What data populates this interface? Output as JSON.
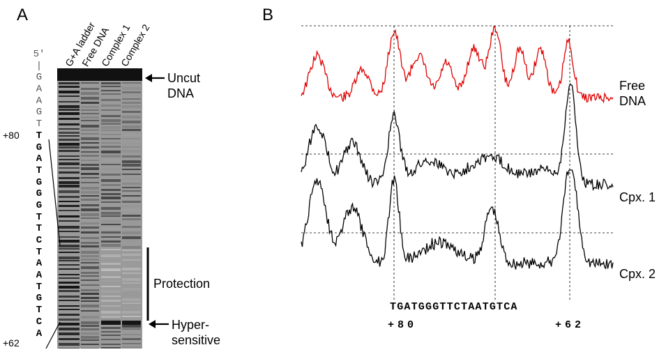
{
  "panel_a": {
    "letter": "A",
    "lanes": [
      "G+A ladder",
      "Free DNA",
      "Complex 1",
      "Complex 2"
    ],
    "sequence_label_5prime": "5′",
    "sequence_light": [
      "G",
      "A",
      "A",
      "G",
      "T"
    ],
    "sequence_bold": [
      "T",
      "G",
      "A",
      "T",
      "G",
      "G",
      "G",
      "T",
      "T",
      "C",
      "T",
      "A",
      "A",
      "T",
      "G",
      "T",
      "C",
      "A"
    ],
    "pos_start": "+80",
    "pos_end": "+62",
    "uncut_line1": "Uncut",
    "uncut_line2": "DNA",
    "protection": "Protection",
    "hyper_line1": "Hyper-",
    "hyper_line2": "sensitive"
  },
  "panel_b": {
    "letter": "B",
    "trace_labels": {
      "free_line1": "Free",
      "free_line2": "DNA",
      "cpx1": "Cpx. 1",
      "cpx2": "Cpx. 2"
    },
    "sequence": "TGATGGGTTCTAATGTCA",
    "pos_start": "+80",
    "pos_end": "+62",
    "colors": {
      "free": "#e00000",
      "complex": "#000000"
    }
  }
}
